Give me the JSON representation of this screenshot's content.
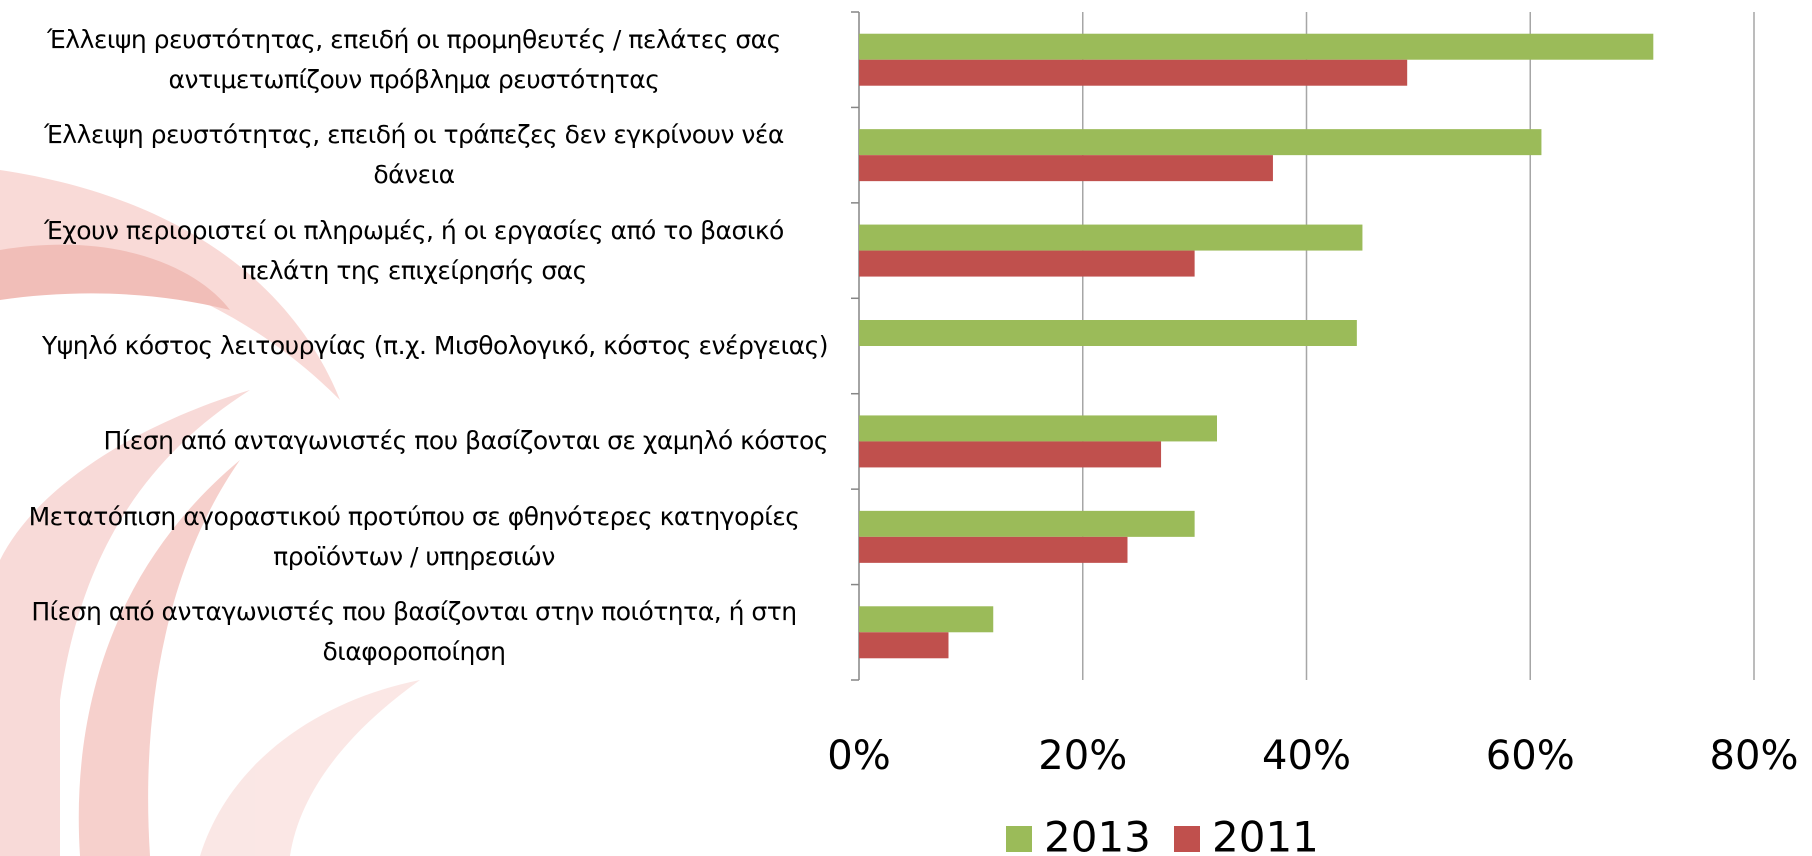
{
  "chart_data": {
    "type": "barh",
    "categories": [
      "Έλλειψη ρευστότητας, επειδή οι προμηθευτές /  πελάτες σας αντιμετωπίζουν πρόβλημα ρευστότητας",
      "Έλλειψη ρευστότητας, επειδή οι τράπεζες δεν εγκρίνουν νέα δάνεια",
      "Έχουν περιοριστεί οι πληρωμές, ή οι εργασίες από το βασικό πελάτη της επιχείρησής σας",
      "Υψηλό κόστος λειτουργίας (π.χ. Μισθολογικό, κόστος ενέργειας)",
      "Πίεση από ανταγωνιστές που βασίζονται σε χαμηλό κόστος",
      "Μετατόπιση αγοραστικού προτύπου σε φθηνότερες κατηγορίες προϊόντων / υπηρεσιών",
      "Πίεση από ανταγωνιστές που βασίζονται στην ποιότητα, ή στη διαφοροποίηση"
    ],
    "series": [
      {
        "name": "2013",
        "color": "#9bbb59",
        "values": [
          71,
          61,
          45,
          44.5,
          32,
          30,
          12
        ]
      },
      {
        "name": "2011",
        "color": "#c0504d",
        "values": [
          49,
          37,
          30,
          null,
          27,
          24,
          8
        ]
      }
    ],
    "xlim": [
      0,
      80
    ],
    "xticks": [
      {
        "value": 0,
        "label": "0%"
      },
      {
        "value": 20,
        "label": "20%"
      },
      {
        "value": 40,
        "label": "40%"
      },
      {
        "value": 60,
        "label": "60%"
      },
      {
        "value": 80,
        "label": "80%"
      }
    ],
    "grid": true,
    "legend": "bottom"
  }
}
